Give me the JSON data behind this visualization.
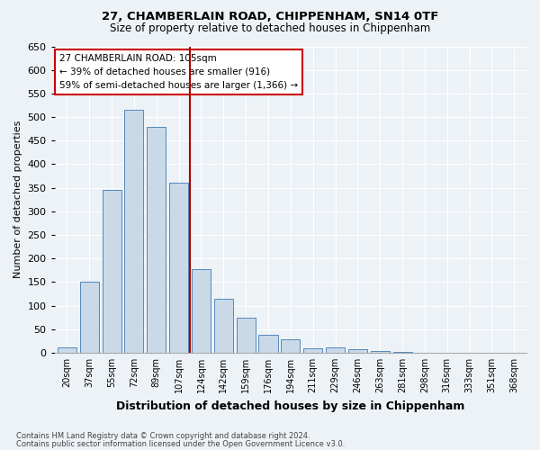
{
  "title1": "27, CHAMBERLAIN ROAD, CHIPPENHAM, SN14 0TF",
  "title2": "Size of property relative to detached houses in Chippenham",
  "xlabel": "Distribution of detached houses by size in Chippenham",
  "ylabel": "Number of detached properties",
  "bar_labels": [
    "20sqm",
    "37sqm",
    "55sqm",
    "72sqm",
    "89sqm",
    "107sqm",
    "124sqm",
    "142sqm",
    "159sqm",
    "176sqm",
    "194sqm",
    "211sqm",
    "229sqm",
    "246sqm",
    "263sqm",
    "281sqm",
    "298sqm",
    "316sqm",
    "333sqm",
    "351sqm",
    "368sqm"
  ],
  "bar_values": [
    12,
    150,
    345,
    515,
    480,
    360,
    178,
    115,
    75,
    38,
    28,
    10,
    12,
    8,
    3,
    1,
    0,
    0,
    0,
    0,
    0
  ],
  "bar_color": "#c9d9e8",
  "bar_edge_color": "#5588bb",
  "property_line_x": 5.5,
  "property_line_color": "#aa0000",
  "ylim": [
    0,
    650
  ],
  "yticks": [
    0,
    50,
    100,
    150,
    200,
    250,
    300,
    350,
    400,
    450,
    500,
    550,
    600,
    650
  ],
  "annotation_text": "27 CHAMBERLAIN ROAD: 105sqm\n← 39% of detached houses are smaller (916)\n59% of semi-detached houses are larger (1,366) →",
  "annotation_box_color": "#ffffff",
  "annotation_box_edge": "#cc0000",
  "footnote1": "Contains HM Land Registry data © Crown copyright and database right 2024.",
  "footnote2": "Contains public sector information licensed under the Open Government Licence v3.0.",
  "background_color": "#edf2f7",
  "plot_bg_color": "#edf2f7",
  "grid_color": "#ffffff"
}
